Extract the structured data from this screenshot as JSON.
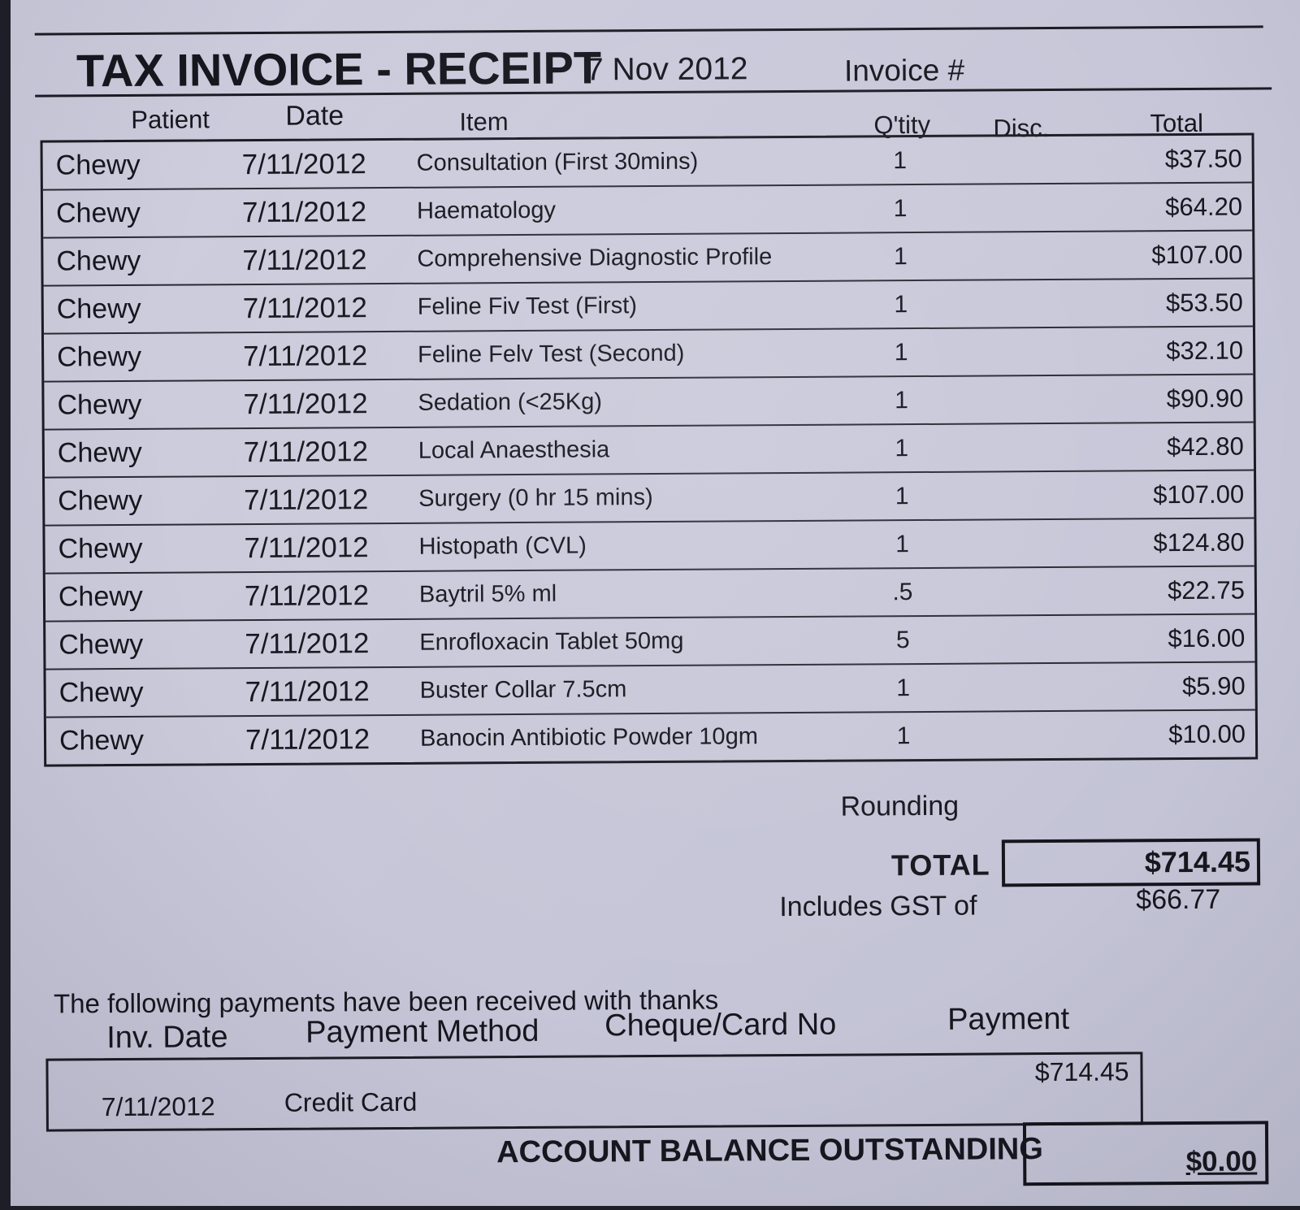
{
  "colors": {
    "paper": "#c7c7d9",
    "ink": "#16161e",
    "edge": "#1e1e29"
  },
  "header": {
    "title": "TAX INVOICE - RECEIPT",
    "date": "7 Nov 2012",
    "invoice_label": "Invoice #"
  },
  "items_table": {
    "headers": {
      "patient": "Patient",
      "date": "Date",
      "item": "Item",
      "qty": "Q'tity",
      "disc": "Disc.",
      "total": "Total"
    },
    "rows": [
      {
        "patient": "Chewy",
        "date": "7/11/2012",
        "item": "Consultation (First 30mins)",
        "qty": "1",
        "disc": "",
        "total": "$37.50"
      },
      {
        "patient": "Chewy",
        "date": "7/11/2012",
        "item": "Haematology",
        "qty": "1",
        "disc": "",
        "total": "$64.20"
      },
      {
        "patient": "Chewy",
        "date": "7/11/2012",
        "item": "Comprehensive Diagnostic Profile",
        "qty": "1",
        "disc": "",
        "total": "$107.00"
      },
      {
        "patient": "Chewy",
        "date": "7/11/2012",
        "item": "Feline Fiv Test (First)",
        "qty": "1",
        "disc": "",
        "total": "$53.50"
      },
      {
        "patient": "Chewy",
        "date": "7/11/2012",
        "item": "Feline Felv Test (Second)",
        "qty": "1",
        "disc": "",
        "total": "$32.10"
      },
      {
        "patient": "Chewy",
        "date": "7/11/2012",
        "item": "Sedation (<25Kg)",
        "qty": "1",
        "disc": "",
        "total": "$90.90"
      },
      {
        "patient": "Chewy",
        "date": "7/11/2012",
        "item": "Local Anaesthesia",
        "qty": "1",
        "disc": "",
        "total": "$42.80"
      },
      {
        "patient": "Chewy",
        "date": "7/11/2012",
        "item": "Surgery (0 hr 15 mins)",
        "qty": "1",
        "disc": "",
        "total": "$107.00"
      },
      {
        "patient": "Chewy",
        "date": "7/11/2012",
        "item": "Histopath (CVL)",
        "qty": "1",
        "disc": "",
        "total": "$124.80"
      },
      {
        "patient": "Chewy",
        "date": "7/11/2012",
        "item": "Baytril 5% ml",
        "qty": ".5",
        "disc": "",
        "total": "$22.75"
      },
      {
        "patient": "Chewy",
        "date": "7/11/2012",
        "item": "Enrofloxacin Tablet 50mg",
        "qty": "5",
        "disc": "",
        "total": "$16.00"
      },
      {
        "patient": "Chewy",
        "date": "7/11/2012",
        "item": "Buster Collar 7.5cm",
        "qty": "1",
        "disc": "",
        "total": "$5.90"
      },
      {
        "patient": "Chewy",
        "date": "7/11/2012",
        "item": "Banocin Antibiotic Powder 10gm",
        "qty": "1",
        "disc": "",
        "total": "$10.00"
      }
    ]
  },
  "summary": {
    "rounding_label": "Rounding",
    "total_label": "TOTAL",
    "total_value": "$714.45",
    "gst_label": "Includes GST of",
    "gst_value": "$66.77"
  },
  "payments": {
    "intro": "The following payments have been received with thanks",
    "headers": {
      "inv_date": "Inv. Date",
      "method": "Payment Method",
      "cheque_no": "Cheque/Card No",
      "payment": "Payment"
    },
    "rows": [
      {
        "inv_date": "7/11/2012",
        "method": "Credit Card",
        "cheque_no": "",
        "payment": "$714.45"
      }
    ],
    "balance_label": "ACCOUNT BALANCE OUTSTANDING",
    "balance_value": "$0.00"
  }
}
